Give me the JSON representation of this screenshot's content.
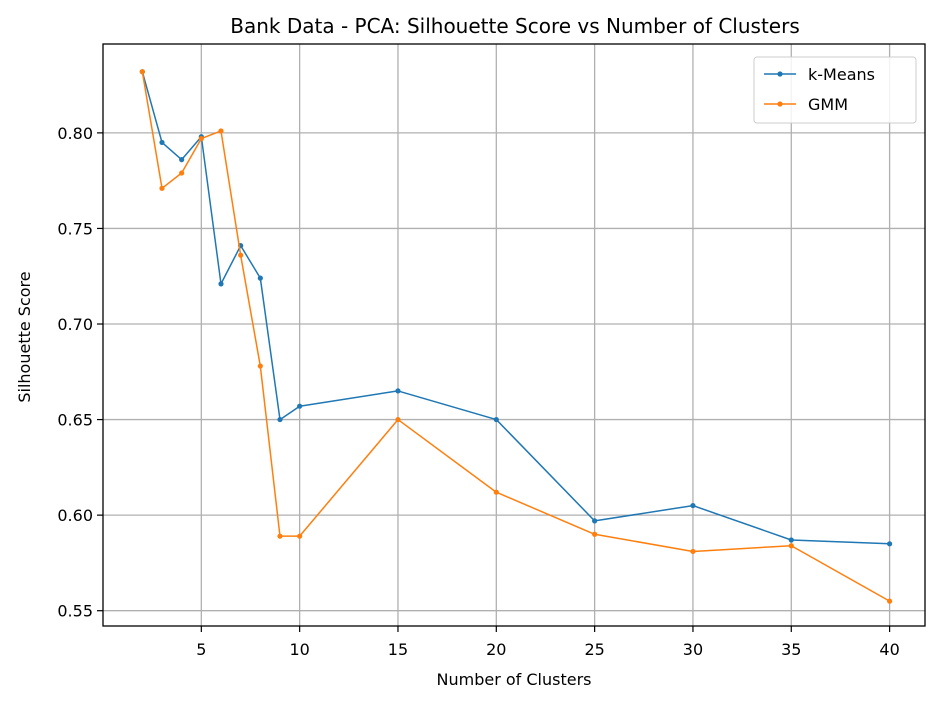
{
  "chart_data": {
    "type": "line",
    "title": "Bank Data - PCA: Silhouette Score vs Number of Clusters",
    "xlabel": "Number of Clusters",
    "ylabel": "Silhouette Score",
    "xlim": [
      0,
      41.8
    ],
    "ylim": [
      0.542,
      0.8465
    ],
    "xticks": [
      5,
      10,
      15,
      20,
      25,
      30,
      35,
      40
    ],
    "xtick_labels": [
      "5",
      "10",
      "15",
      "20",
      "25",
      "30",
      "35",
      "40"
    ],
    "yticks": [
      0.55,
      0.6,
      0.65,
      0.7,
      0.75,
      0.8
    ],
    "ytick_labels": [
      "0.55",
      "0.60",
      "0.65",
      "0.70",
      "0.75",
      "0.80"
    ],
    "grid": true,
    "legend_position": "top-right",
    "series": [
      {
        "name": "k-Means",
        "color": "#1f77b4",
        "x": [
          2,
          3,
          4,
          5,
          6,
          7,
          8,
          9,
          10,
          15,
          20,
          25,
          30,
          35,
          40
        ],
        "y": [
          0.832,
          0.795,
          0.786,
          0.798,
          0.721,
          0.741,
          0.724,
          0.65,
          0.657,
          0.665,
          0.65,
          0.597,
          0.605,
          0.587,
          0.585
        ]
      },
      {
        "name": "GMM",
        "color": "#ff7f0e",
        "x": [
          2,
          3,
          4,
          5,
          6,
          7,
          8,
          9,
          10,
          15,
          20,
          25,
          30,
          35,
          40
        ],
        "y": [
          0.832,
          0.771,
          0.779,
          0.797,
          0.801,
          0.736,
          0.678,
          0.589,
          0.589,
          0.65,
          0.612,
          0.59,
          0.581,
          0.584,
          0.555
        ]
      }
    ]
  }
}
